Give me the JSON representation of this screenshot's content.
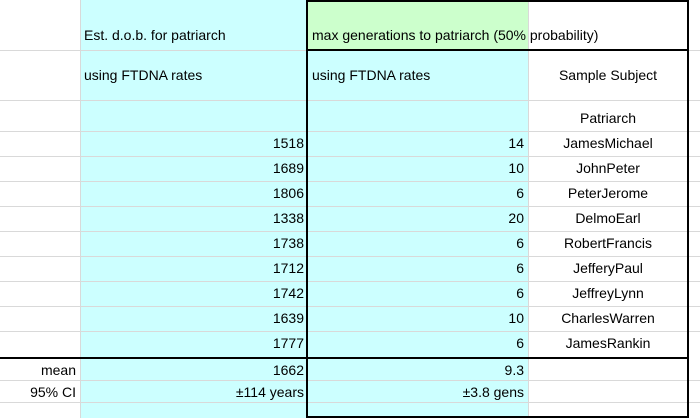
{
  "headers": {
    "est_dob": "Est. d.o.b. for patriarch",
    "max_gen": "max generations to patriarch (50% probability)",
    "rates_left": "using FTDNA  rates",
    "rates_right": "using FTDNA  rates",
    "sample_subject": "Sample Subject",
    "patriarch": "Patriarch"
  },
  "rows": [
    {
      "dob": "1518",
      "gens": "14",
      "name": "JamesMichael"
    },
    {
      "dob": "1689",
      "gens": "10",
      "name": "JohnPeter"
    },
    {
      "dob": "1806",
      "gens": "6",
      "name": "PeterJerome"
    },
    {
      "dob": "1338",
      "gens": "20",
      "name": "DelmoEarl"
    },
    {
      "dob": "1738",
      "gens": "6",
      "name": "RobertFrancis"
    },
    {
      "dob": "1712",
      "gens": "6",
      "name": "JefferyPaul"
    },
    {
      "dob": "1742",
      "gens": "6",
      "name": "JeffreyLynn"
    },
    {
      "dob": "1639",
      "gens": "10",
      "name": "CharlesWarren"
    },
    {
      "dob": "1777",
      "gens": "6",
      "name": "JamesRankin"
    }
  ],
  "summary": {
    "mean_label": "mean",
    "mean_dob": "1662",
    "mean_gens": "9.3",
    "ci_label": "95% CI",
    "ci_dob": "±114 years",
    "ci_gens": "±3.8 gens"
  },
  "colors": {
    "cyan_fill": "#ccffff",
    "green_fill": "#ccffcc",
    "grid": "#d9d9d9",
    "border": "#000000"
  }
}
